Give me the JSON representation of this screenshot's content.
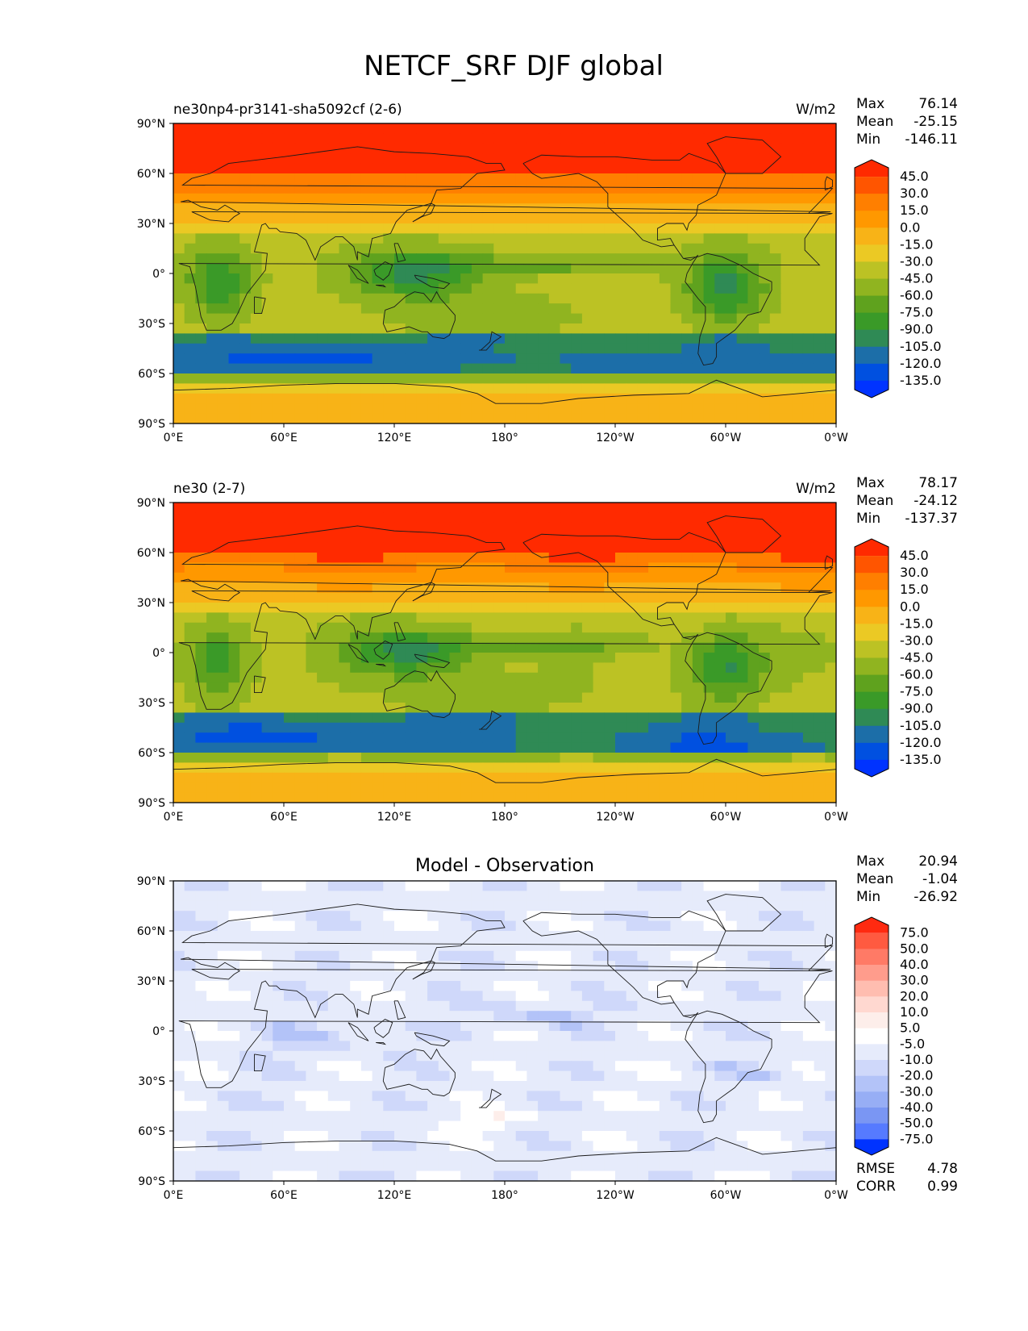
{
  "figure": {
    "title": "NETCF_SRF DJF global"
  },
  "panels": [
    {
      "left_title": "ne30np4-pr3141-sha5092cf (2-6)",
      "center_title": "",
      "units": "W/m2",
      "stats": [
        {
          "label": "Max",
          "value": "76.14"
        },
        {
          "label": "Mean",
          "value": "-25.15"
        },
        {
          "label": "Min",
          "value": "-146.11"
        }
      ],
      "extra_stats": [],
      "colorbar": {
        "labels": [
          "45.0",
          "30.0",
          "15.0",
          "0.0",
          "-15.0",
          "-30.0",
          "-45.0",
          "-60.0",
          "-75.0",
          "-90.0",
          "-105.0",
          "-120.0",
          "-135.0"
        ],
        "colors": [
          "#ff2a00",
          "#ff5500",
          "#ff7f00",
          "#ff9800",
          "#f8b317",
          "#ebc924",
          "#bcc224",
          "#90b420",
          "#5fa21e",
          "#3a9a28",
          "#2f8a55",
          "#1c6ea8",
          "#0050e0",
          "#0033ff"
        ]
      },
      "field": "model_a"
    },
    {
      "left_title": "ne30 (2-7)",
      "center_title": "",
      "units": "W/m2",
      "stats": [
        {
          "label": "Max",
          "value": "78.17"
        },
        {
          "label": "Mean",
          "value": "-24.12"
        },
        {
          "label": "Min",
          "value": "-137.37"
        }
      ],
      "extra_stats": [],
      "colorbar": {
        "labels": [
          "45.0",
          "30.0",
          "15.0",
          "0.0",
          "-15.0",
          "-30.0",
          "-45.0",
          "-60.0",
          "-75.0",
          "-90.0",
          "-105.0",
          "-120.0",
          "-135.0"
        ],
        "colors": [
          "#ff2a00",
          "#ff5500",
          "#ff7f00",
          "#ff9800",
          "#f8b317",
          "#ebc924",
          "#bcc224",
          "#90b420",
          "#5fa21e",
          "#3a9a28",
          "#2f8a55",
          "#1c6ea8",
          "#0050e0",
          "#0033ff"
        ]
      },
      "field": "model_b"
    },
    {
      "left_title": "",
      "center_title": "Model - Observation",
      "units": "",
      "stats": [
        {
          "label": "Max",
          "value": "20.94"
        },
        {
          "label": "Mean",
          "value": "-1.04"
        },
        {
          "label": "Min",
          "value": "-26.92"
        }
      ],
      "extra_stats": [
        {
          "label": "RMSE",
          "value": "4.78"
        },
        {
          "label": "CORR",
          "value": "0.99"
        }
      ],
      "colorbar": {
        "labels": [
          "75.0",
          "50.0",
          "40.0",
          "30.0",
          "20.0",
          "10.0",
          "5.0",
          "-5.0",
          "-10.0",
          "-20.0",
          "-30.0",
          "-40.0",
          "-50.0",
          "-75.0"
        ],
        "colors": [
          "#ff2a10",
          "#ff5a40",
          "#ff7a66",
          "#ff9c8c",
          "#ffbdb0",
          "#ffd8d0",
          "#fdeeea",
          "#ffffff",
          "#e6ebfb",
          "#cfd8fa",
          "#b3c3f8",
          "#97aef5",
          "#7a96f3",
          "#567aff",
          "#0033ff"
        ]
      },
      "field": "diff"
    }
  ],
  "axes": {
    "x_ticks": [
      "0°E",
      "60°E",
      "120°E",
      "180°",
      "120°W",
      "60°W",
      "0°W"
    ],
    "y_ticks": [
      "90°N",
      "60°N",
      "30°N",
      "0°",
      "30°S",
      "60°S",
      "90°S"
    ]
  },
  "chart_data": [
    {
      "type": "heatmap",
      "title": "NETCF_SRF DJF global",
      "subtitle": "ne30np4-pr3141-sha5092cf (2-6)",
      "units": "W/m2",
      "x_range": [
        0,
        360
      ],
      "y_range": [
        -90,
        90
      ],
      "stats": {
        "max": 76.14,
        "mean": -25.15,
        "min": -146.11
      },
      "levels": [
        -135,
        -120,
        -105,
        -90,
        -75,
        -60,
        -45,
        -30,
        -15,
        0,
        15,
        30,
        45
      ]
    },
    {
      "type": "heatmap",
      "subtitle": "ne30 (2-7)",
      "units": "W/m2",
      "x_range": [
        0,
        360
      ],
      "y_range": [
        -90,
        90
      ],
      "stats": {
        "max": 78.17,
        "mean": -24.12,
        "min": -137.37
      },
      "levels": [
        -135,
        -120,
        -105,
        -90,
        -75,
        -60,
        -45,
        -30,
        -15,
        0,
        15,
        30,
        45
      ]
    },
    {
      "type": "heatmap",
      "subtitle": "Model - Observation",
      "x_range": [
        0,
        360
      ],
      "y_range": [
        -90,
        90
      ],
      "stats": {
        "max": 20.94,
        "mean": -1.04,
        "min": -26.92,
        "rmse": 4.78,
        "corr": 0.99
      },
      "levels": [
        -75,
        -50,
        -40,
        -30,
        -20,
        -10,
        -5,
        5,
        10,
        20,
        30,
        40,
        50,
        75
      ]
    }
  ]
}
